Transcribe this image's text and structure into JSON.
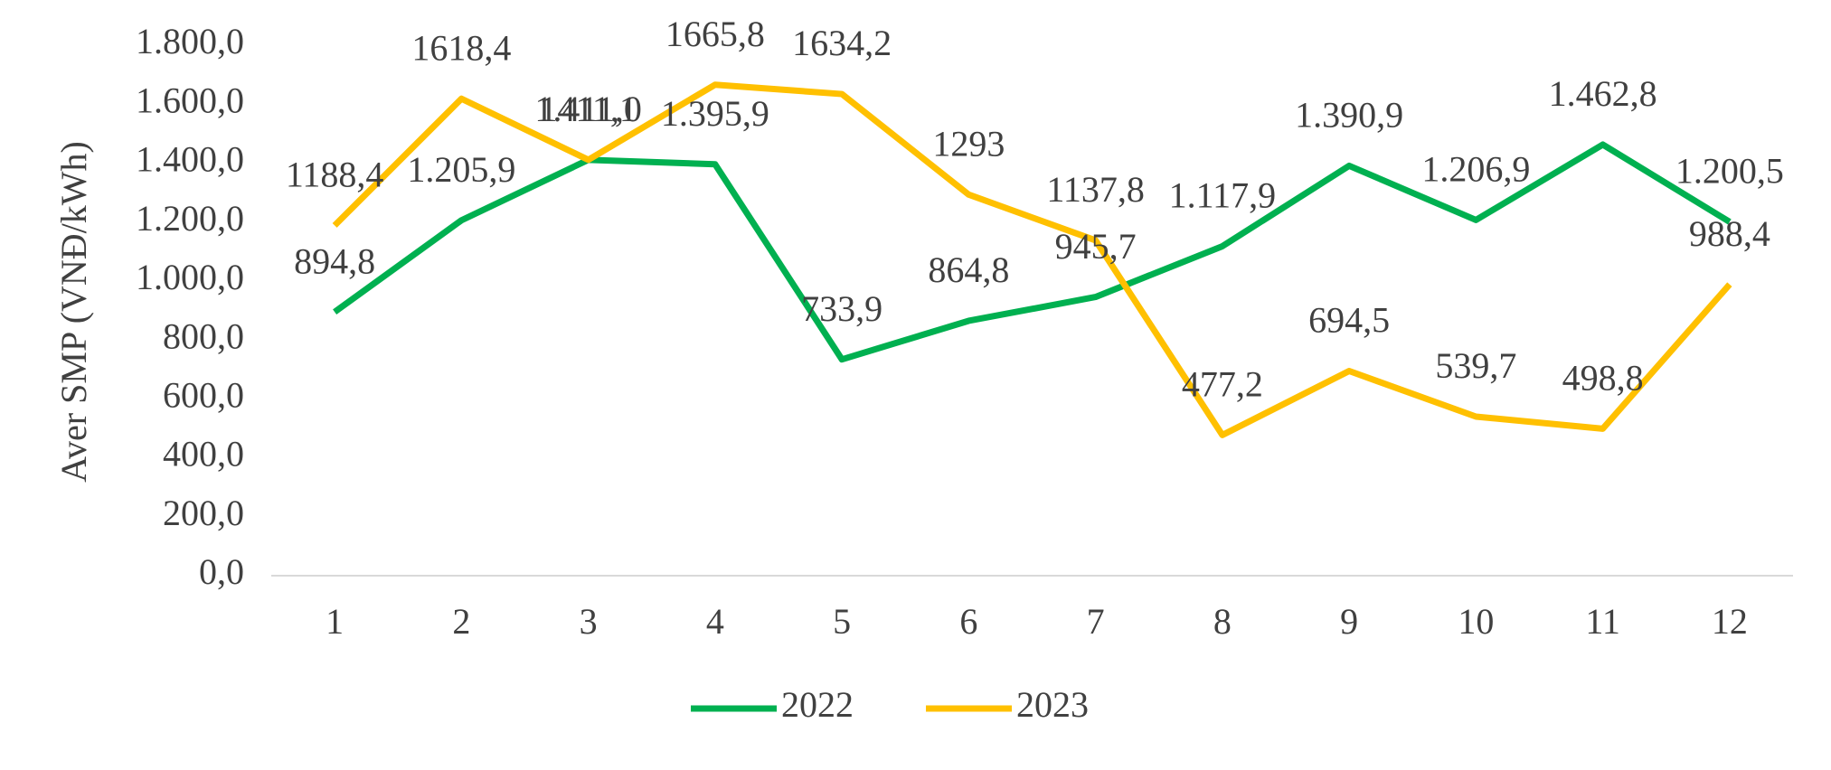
{
  "chart_data": {
    "type": "line",
    "y_label": "Aver SMP (VNĐ/kWh)",
    "categories": [
      "1",
      "2",
      "3",
      "4",
      "5",
      "6",
      "7",
      "8",
      "9",
      "10",
      "11",
      "12"
    ],
    "series": [
      {
        "name": "2022",
        "color": "#00b050",
        "values": [
          894.8,
          1205.9,
          1411.0,
          1395.9,
          733.9,
          864.8,
          945.7,
          1117.9,
          1390.9,
          1206.9,
          1462.8,
          1200.5
        ],
        "value_labels": [
          "894,8",
          "1.205,9",
          "1.411,0",
          "1.395,9",
          "733,9",
          "864,8",
          "945,7",
          "1.117,9",
          "1.390,9",
          "1.206,9",
          "1.462,8",
          "1.200,5"
        ]
      },
      {
        "name": "2023",
        "color": "#ffc000",
        "values": [
          1188.4,
          1618.4,
          1411.1,
          1665.8,
          1634.2,
          1293,
          1137.8,
          477.2,
          694.5,
          539.7,
          498.8,
          988.4
        ],
        "value_labels": [
          "1188,4",
          "1618,4",
          "1411,1",
          "1665,8",
          "1634,2",
          "1293",
          "1137,8",
          "477,2",
          "694,5",
          "539,7",
          "498,8",
          "988,4"
        ]
      }
    ],
    "ylim": [
      0,
      1800
    ],
    "yticks": [
      {
        "value": 0,
        "label": "0,0"
      },
      {
        "value": 200,
        "label": "200,0"
      },
      {
        "value": 400,
        "label": "400,0"
      },
      {
        "value": 600,
        "label": "600,0"
      },
      {
        "value": 800,
        "label": "800,0"
      },
      {
        "value": 1000,
        "label": "1.000,0"
      },
      {
        "value": 1200,
        "label": "1.200,0"
      },
      {
        "value": 1400,
        "label": "1.400,0"
      },
      {
        "value": 1600,
        "label": "1.600,0"
      },
      {
        "value": 1800,
        "label": "1.800,0"
      }
    ],
    "grid": false,
    "legend": "bottom"
  }
}
